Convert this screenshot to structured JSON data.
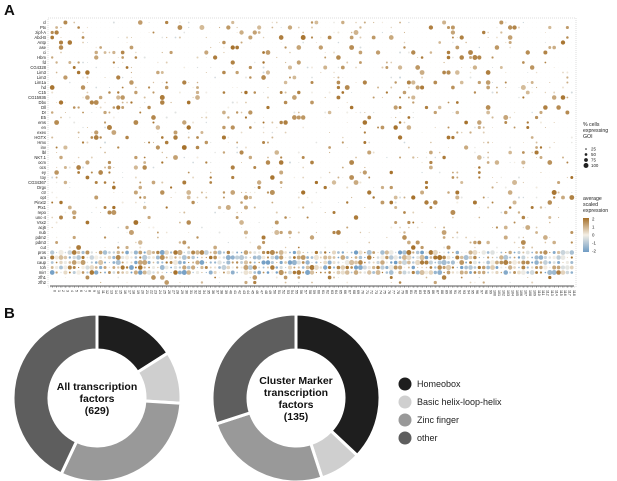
{
  "panels": {
    "a": "A",
    "b": "B"
  },
  "dotplot": {
    "genes": [
      "cl",
      "Ptx",
      "zipf-A",
      "Abd-B",
      "Antp",
      "ase",
      "ci",
      "Hbm",
      "fd",
      "CG4328",
      "Lim3",
      "Lim3",
      "Lim1a",
      "hd",
      "C15",
      "CG15936",
      "Dbx",
      "Dll",
      "Dr",
      "E5",
      "ems",
      "en",
      "exex",
      "HGTX",
      "Hmx",
      "inv",
      "lbl",
      "NK7.1",
      "ocm",
      "ocs",
      "ey",
      "toy",
      "CG34367",
      "Drgx",
      "ctr",
      "opt",
      "Pinxt2",
      "Ptx1",
      "repo",
      "unc-4",
      "Vsx2",
      "acj6",
      "nub",
      "pdm2",
      "pdm3",
      "cut",
      "pros",
      "ara",
      "caup",
      "toh",
      "mirr",
      "zfh1",
      "zfh2"
    ],
    "clusters": [
      "0",
      "1",
      "2",
      "3",
      "4",
      "5",
      "6",
      "7",
      "8",
      "9",
      "10",
      "11",
      "12",
      "13",
      "14",
      "15",
      "16",
      "17",
      "18",
      "19",
      "20",
      "21",
      "22",
      "23",
      "24",
      "25",
      "26",
      "27",
      "28",
      "29",
      "30",
      "31",
      "32",
      "33",
      "34",
      "35",
      "36",
      "37",
      "38",
      "39",
      "40",
      "41",
      "42",
      "43",
      "44",
      "45",
      "46",
      "47",
      "48",
      "49",
      "50",
      "51",
      "52",
      "53",
      "54",
      "55",
      "56",
      "57",
      "58",
      "59",
      "60",
      "61",
      "62",
      "63",
      "64",
      "65",
      "66",
      "67",
      "68",
      "69",
      "70",
      "71",
      "72",
      "73",
      "74",
      "75",
      "76",
      "77",
      "78",
      "79",
      "80",
      "81",
      "82",
      "83",
      "84",
      "85",
      "86",
      "87",
      "88",
      "89",
      "90",
      "91",
      "92",
      "93",
      "94",
      "95",
      "96",
      "97",
      "98",
      "99",
      "100",
      "101",
      "102",
      "103",
      "104",
      "105",
      "106",
      "107",
      "108",
      "109",
      "110",
      "111",
      "112",
      "113",
      "114",
      "115",
      "116",
      "117",
      "118"
    ],
    "pct_legend": {
      "title": "% cells expressing GOI",
      "ticks": [
        "25",
        "50",
        "75",
        "100"
      ]
    },
    "color_legend": {
      "title": "average scaled expression",
      "ticks": [
        "2",
        "1",
        "0",
        "-1",
        "-2"
      ]
    },
    "colors": {
      "high": "#a5702a",
      "mid": "#f4efe6",
      "low": "#6f9cc4"
    }
  },
  "chart_data": [
    {
      "type": "scatter",
      "title": "",
      "note": "dot plot: genes (rows) x clusters 0-118 (columns); dot size = % cells expressing GOI, color = average scaled expression",
      "size_legend": [
        25,
        50,
        75,
        100
      ],
      "color_scale": [
        -2,
        -1,
        0,
        1,
        2
      ]
    },
    {
      "type": "pie",
      "label_lines": [
        "All transcription",
        "factors",
        "(629)"
      ],
      "categories": [
        "Homeobox",
        "Basic helix-loop-helix",
        "Zinc finger",
        "other"
      ],
      "values": [
        16,
        10,
        31,
        43
      ]
    },
    {
      "type": "pie",
      "label_lines": [
        "Cluster Marker",
        "transcription",
        "factors",
        "(135)"
      ],
      "categories": [
        "Homeobox",
        "Basic helix-loop-helix",
        "Zinc finger",
        "other"
      ],
      "values": [
        37,
        8,
        25,
        30
      ]
    }
  ],
  "legend": [
    {
      "label": "Homeobox",
      "color": "#1e1e1e"
    },
    {
      "label": "Basic helix-loop-helix",
      "color": "#cfcfcf"
    },
    {
      "label": "Zinc finger",
      "color": "#999999"
    },
    {
      "label": "other",
      "color": "#5e5e5e"
    }
  ]
}
